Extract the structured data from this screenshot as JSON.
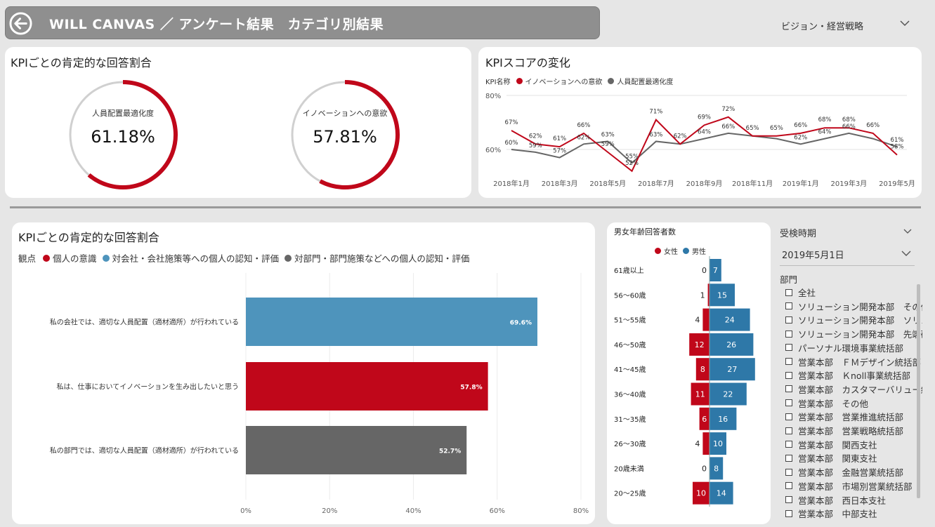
{
  "header": {
    "title": "WILL CANVAS ／ アンケート結果　カテゴリ別結果"
  },
  "top_dropdown": {
    "value": "ビジョン・経営戦略"
  },
  "kpi_card": {
    "title": "KPIごとの肯定的な回答割合",
    "gauges": [
      {
        "label": "人員配置最適化度",
        "value_text": "61.18%",
        "value": 61.18
      },
      {
        "label": "イノベーションへの意欲",
        "value_text": "57.81%",
        "value": 57.81
      }
    ]
  },
  "colors": {
    "red": "#c0071a",
    "gray": "#666666",
    "blue": "#4e94bc",
    "male_blue": "#2e78a8"
  },
  "chart_data": [
    {
      "type": "line",
      "title": "KPIスコアの変化",
      "legend_title": "KPI名称",
      "legend_position": "top-left",
      "y_ticks": [
        "80%",
        "60%"
      ],
      "ylim": [
        50,
        80
      ],
      "x_tick_labels": [
        "2018年1月",
        "2018年3月",
        "2018年5月",
        "2018年7月",
        "2018年9月",
        "2018年11月",
        "2019年1月",
        "2019年3月",
        "2019年5月"
      ],
      "series": [
        {
          "name": "イノベーションへの意欲",
          "color": "#c0071a",
          "values": [
            67,
            62,
            61,
            66,
            59,
            52,
            71,
            62,
            69,
            72,
            65,
            65,
            66,
            68,
            68,
            66,
            58
          ],
          "labels": [
            "67%",
            "62%",
            "61%",
            "66%",
            "59%",
            "52%",
            "71%",
            "62%",
            "69%",
            "72%",
            "65%",
            "65%",
            "66%",
            "68%",
            "68%",
            "66%",
            "58%"
          ]
        },
        {
          "name": "人員配置最適化度",
          "color": "#666666",
          "values": [
            60,
            59,
            57,
            62,
            63,
            55,
            63,
            62,
            64,
            66,
            65,
            64,
            62,
            64,
            66,
            64,
            61
          ],
          "labels": [
            "60%",
            "59%",
            "57%",
            "62%",
            "63%",
            "55%",
            "63%",
            "",
            "64%",
            "66%",
            "",
            "",
            "62%",
            "64%",
            "66%",
            "",
            "61%"
          ]
        }
      ]
    },
    {
      "type": "bar",
      "orientation": "horizontal",
      "title": "KPIごとの肯定的な回答割合",
      "legend_title": "観点",
      "legend": [
        {
          "name": "個人の意識",
          "color": "#c0071a"
        },
        {
          "name": "対会社・会社施策等への個人の認知・評価",
          "color": "#4e94bc"
        },
        {
          "name": "対部門・部門施策などへの個人の認知・評価",
          "color": "#666666"
        }
      ],
      "categories": [
        "私の会社では、適切な人員配置（適材適所）が行われている",
        "私は、仕事においてイノベーションを生み出したいと思う",
        "私の部門では、適切な人員配置（適材適所）が行われている"
      ],
      "values": [
        69.6,
        57.8,
        52.7
      ],
      "value_labels": [
        "69.6%",
        "57.8%",
        "52.7%"
      ],
      "bar_colors": [
        "#4e94bc",
        "#c0071a",
        "#666666"
      ],
      "x_ticks": [
        "0%",
        "20%",
        "40%",
        "60%",
        "80%"
      ],
      "xlim": [
        0,
        80
      ]
    },
    {
      "type": "bar",
      "orientation": "population-pyramid",
      "title": "男女年齢回答者数",
      "legend": [
        {
          "name": "女性",
          "color": "#c0071a"
        },
        {
          "name": "男性",
          "color": "#2e78a8"
        }
      ],
      "categories": [
        "61歳以上",
        "56～60歳",
        "51～55歳",
        "46～50歳",
        "41～45歳",
        "36～40歳",
        "31～35歳",
        "26～30歳",
        "20歳未満",
        "20～25歳"
      ],
      "series": [
        {
          "name": "女性",
          "values": [
            0,
            1,
            4,
            12,
            8,
            11,
            6,
            4,
            0,
            10
          ]
        },
        {
          "name": "男性",
          "values": [
            7,
            15,
            24,
            26,
            27,
            22,
            16,
            10,
            8,
            14
          ]
        }
      ]
    }
  ],
  "slicers": {
    "period": {
      "title": "受検時期",
      "value": "2019年5月1日"
    },
    "department": {
      "title": "部門",
      "items": [
        "全社",
        "ソリューション開発本部　その他",
        "ソリューション開発本部　ソリュー",
        "ソリューション開発本部　先端研",
        "パーソナル環境事業統括部",
        "営業本部　ＦＭデザイン統括部",
        "営業本部　Ｋnoll事業統括部",
        "営業本部　カスタマーバリュー統",
        "営業本部　その他",
        "営業本部　営業推進統括部",
        "営業本部　営業戦略統括部",
        "営業本部　関西支社",
        "営業本部　関東支社",
        "営業本部　金融営業統括部",
        "営業本部　市場別営業統括部",
        "営業本部　西日本支社",
        "営業本部　中部支社"
      ]
    }
  }
}
